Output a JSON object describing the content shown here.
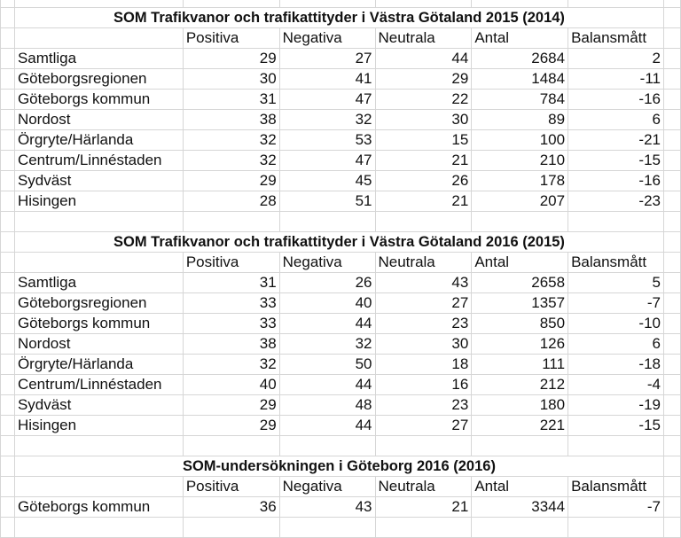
{
  "sections": [
    {
      "title": "SOM Trafikvanor och trafikattityder i Västra Götaland 2015 (2014)",
      "headers": [
        "Positiva",
        "Negativa",
        "Neutrala",
        "Antal",
        "Balansmått"
      ],
      "rows": [
        {
          "label": "Samtliga",
          "values": [
            29,
            27,
            44,
            2684,
            2
          ]
        },
        {
          "label": "Göteborgsregionen",
          "values": [
            30,
            41,
            29,
            1484,
            -11
          ]
        },
        {
          "label": "Göteborgs kommun",
          "values": [
            31,
            47,
            22,
            784,
            -16
          ]
        },
        {
          "label": "Nordost",
          "values": [
            38,
            32,
            30,
            89,
            6
          ]
        },
        {
          "label": "Örgryte/Härlanda",
          "values": [
            32,
            53,
            15,
            100,
            -21
          ]
        },
        {
          "label": "Centrum/Linnéstaden",
          "values": [
            32,
            47,
            21,
            210,
            -15
          ]
        },
        {
          "label": "Sydväst",
          "values": [
            29,
            45,
            26,
            178,
            -16
          ]
        },
        {
          "label": "Hisingen",
          "values": [
            28,
            51,
            21,
            207,
            -23
          ]
        }
      ]
    },
    {
      "title": "SOM Trafikvanor och trafikattityder i Västra Götaland 2016 (2015)",
      "headers": [
        "Positiva",
        "Negativa",
        "Neutrala",
        "Antal",
        "Balansmått"
      ],
      "rows": [
        {
          "label": "Samtliga",
          "values": [
            31,
            26,
            43,
            2658,
            5
          ]
        },
        {
          "label": "Göteborgsregionen",
          "values": [
            33,
            40,
            27,
            1357,
            -7
          ]
        },
        {
          "label": "Göteborgs kommun",
          "values": [
            33,
            44,
            23,
            850,
            -10
          ]
        },
        {
          "label": "Nordost",
          "values": [
            38,
            32,
            30,
            126,
            6
          ]
        },
        {
          "label": "Örgryte/Härlanda",
          "values": [
            32,
            50,
            18,
            111,
            -18
          ]
        },
        {
          "label": "Centrum/Linnéstaden",
          "values": [
            40,
            44,
            16,
            212,
            -4
          ]
        },
        {
          "label": "Sydväst",
          "values": [
            29,
            48,
            23,
            180,
            -19
          ]
        },
        {
          "label": "Hisingen",
          "values": [
            29,
            44,
            27,
            221,
            -15
          ]
        }
      ]
    },
    {
      "title": "SOM-undersökningen i Göteborg 2016 (2016)",
      "headers": [
        "Positiva",
        "Negativa",
        "Neutrala",
        "Antal",
        "Balansmått"
      ],
      "rows": [
        {
          "label": "Göteborgs kommun",
          "values": [
            36,
            43,
            21,
            3344,
            -7
          ]
        }
      ]
    }
  ]
}
